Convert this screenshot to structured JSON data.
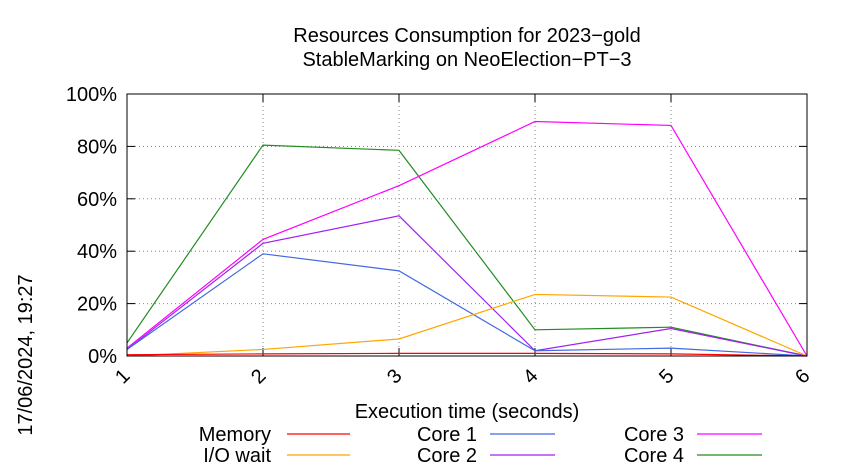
{
  "chart_data": {
    "type": "line",
    "title_lines": [
      "Resources Consumption for 2023−gold",
      "StableMarking on NeoElection−PT−3"
    ],
    "xlabel": "Execution time (seconds)",
    "ylabel": "",
    "side_label": "17/06/2024, 19:27",
    "x": [
      1,
      2,
      3,
      4,
      5,
      6
    ],
    "xlim": [
      1,
      6
    ],
    "ylim": [
      0,
      100
    ],
    "x_ticks": [
      "1",
      "2",
      "3",
      "4",
      "5",
      "6"
    ],
    "y_ticks": [
      "0%",
      "20%",
      "40%",
      "60%",
      "80%",
      "100%"
    ],
    "grid": true,
    "legend_position": "bottom",
    "series": [
      {
        "name": "Memory",
        "color": "#ff0000",
        "values": [
          0.5,
          0.8,
          1.0,
          1.0,
          0.8,
          0.0
        ]
      },
      {
        "name": "I/O wait",
        "color": "#ffa500",
        "values": [
          0.0,
          2.5,
          6.5,
          23.5,
          22.5,
          0.0
        ]
      },
      {
        "name": "Core 1",
        "color": "#4169e1",
        "values": [
          2.5,
          39.0,
          32.5,
          2.0,
          3.0,
          0.0
        ]
      },
      {
        "name": "Core 2",
        "color": "#a020f0",
        "values": [
          2.5,
          43.0,
          53.5,
          2.0,
          10.5,
          0.0
        ]
      },
      {
        "name": "Core 3",
        "color": "#ff00ff",
        "values": [
          3.0,
          44.5,
          65.0,
          89.5,
          88.0,
          0.0
        ]
      },
      {
        "name": "Core 4",
        "color": "#228b22",
        "values": [
          5.0,
          80.5,
          78.5,
          10.0,
          11.0,
          0.0
        ]
      }
    ]
  }
}
